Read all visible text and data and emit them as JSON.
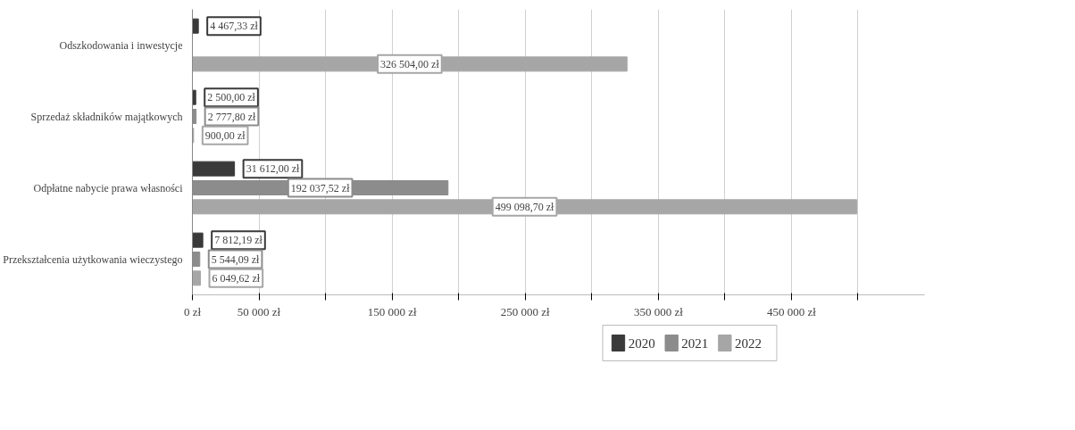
{
  "chart_data": {
    "type": "bar",
    "orientation": "horizontal",
    "categories": [
      "Odszkodowania i inwestycje",
      "Sprzedaż składników majątkowych",
      "Odpłatne nabycie prawa własności",
      "Przekształcenia użytkowania wieczystego"
    ],
    "series": [
      {
        "name": "2020",
        "color": "#3a3a3a",
        "values": [
          4467.33,
          2500,
          31612,
          7812.19
        ],
        "value_labels": [
          "4 467,33 zł",
          "2 500,00 zł",
          "31 612,00 zł",
          "7 812,19 zł"
        ]
      },
      {
        "name": "2021",
        "color": "#8c8c8c",
        "values": [
          null,
          2777.8,
          192037.52,
          5544.09
        ],
        "value_labels": [
          null,
          "2 777,80 zł",
          "192 037,52 zł",
          "5 544,09 zł"
        ]
      },
      {
        "name": "2022",
        "color": "#a6a6a6",
        "values": [
          326504,
          900,
          499098.7,
          6049.62
        ],
        "value_labels": [
          "326 504,00 zł",
          "900,00 zł",
          "499 098,70 zł",
          "6 049,62 zł"
        ]
      }
    ],
    "xlim": [
      0,
      550000
    ],
    "xticks": [
      {
        "value": 0,
        "label": "0 zł"
      },
      {
        "value": 50000,
        "label": "50 000 zł"
      },
      {
        "value": 100000,
        "label": null
      },
      {
        "value": 150000,
        "label": "150 000 zł"
      },
      {
        "value": 200000,
        "label": null
      },
      {
        "value": 250000,
        "label": "250 000 zł"
      },
      {
        "value": 300000,
        "label": null
      },
      {
        "value": 350000,
        "label": "350 000 zł"
      },
      {
        "value": 400000,
        "label": null
      },
      {
        "value": 450000,
        "label": "450 000 zł"
      },
      {
        "value": 500000,
        "label": null
      }
    ],
    "grid": "x",
    "legend": "bottom"
  }
}
